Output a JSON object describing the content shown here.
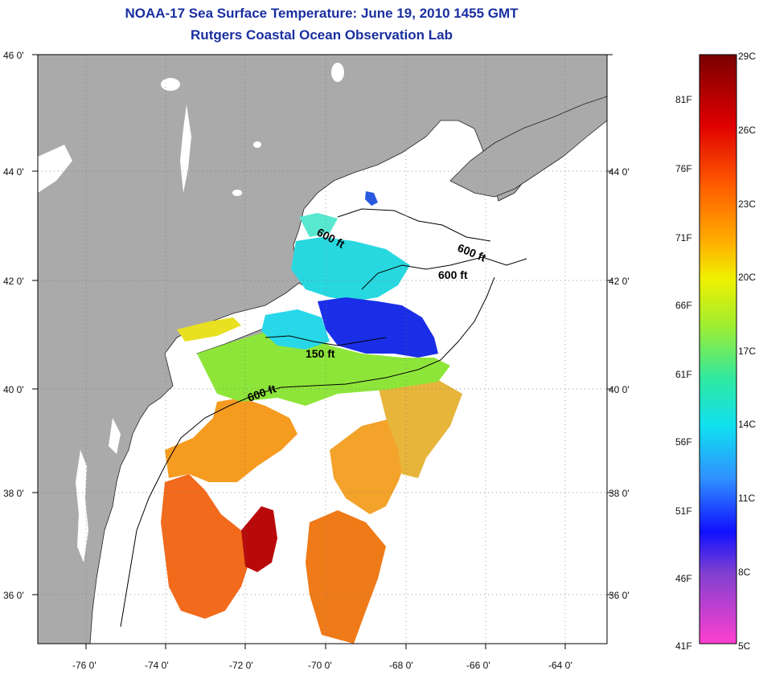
{
  "title": "NOAA-17 Sea Surface Temperature:  June 19, 2010 1455 GMT",
  "subtitle": "Rutgers Coastal Ocean Observation Lab",
  "lat_labels": [
    "46 0'",
    "44 0'",
    "42 0'",
    "40 0'",
    "38 0'",
    "36 0'"
  ],
  "lon_labels": [
    "-76 0'",
    "-74 0'",
    "-72 0'",
    "-70 0'",
    "-68 0'",
    "-66 0'",
    "-64 0'"
  ],
  "colorbar": {
    "fahrenheit": [
      "81F",
      "76F",
      "71F",
      "66F",
      "61F",
      "56F",
      "51F",
      "46F",
      "41F"
    ],
    "celsius": [
      "29C",
      "26C",
      "23C",
      "20C",
      "17C",
      "14C",
      "11C",
      "8C",
      "5C"
    ]
  },
  "contours": {
    "c1": "600 ft",
    "c2": "600 ft",
    "c3": "600 ft",
    "c4": "150 ft",
    "c5": "600 ft"
  },
  "colors": {
    "land": "#aaaaaa",
    "title": "#1a2fa0"
  }
}
